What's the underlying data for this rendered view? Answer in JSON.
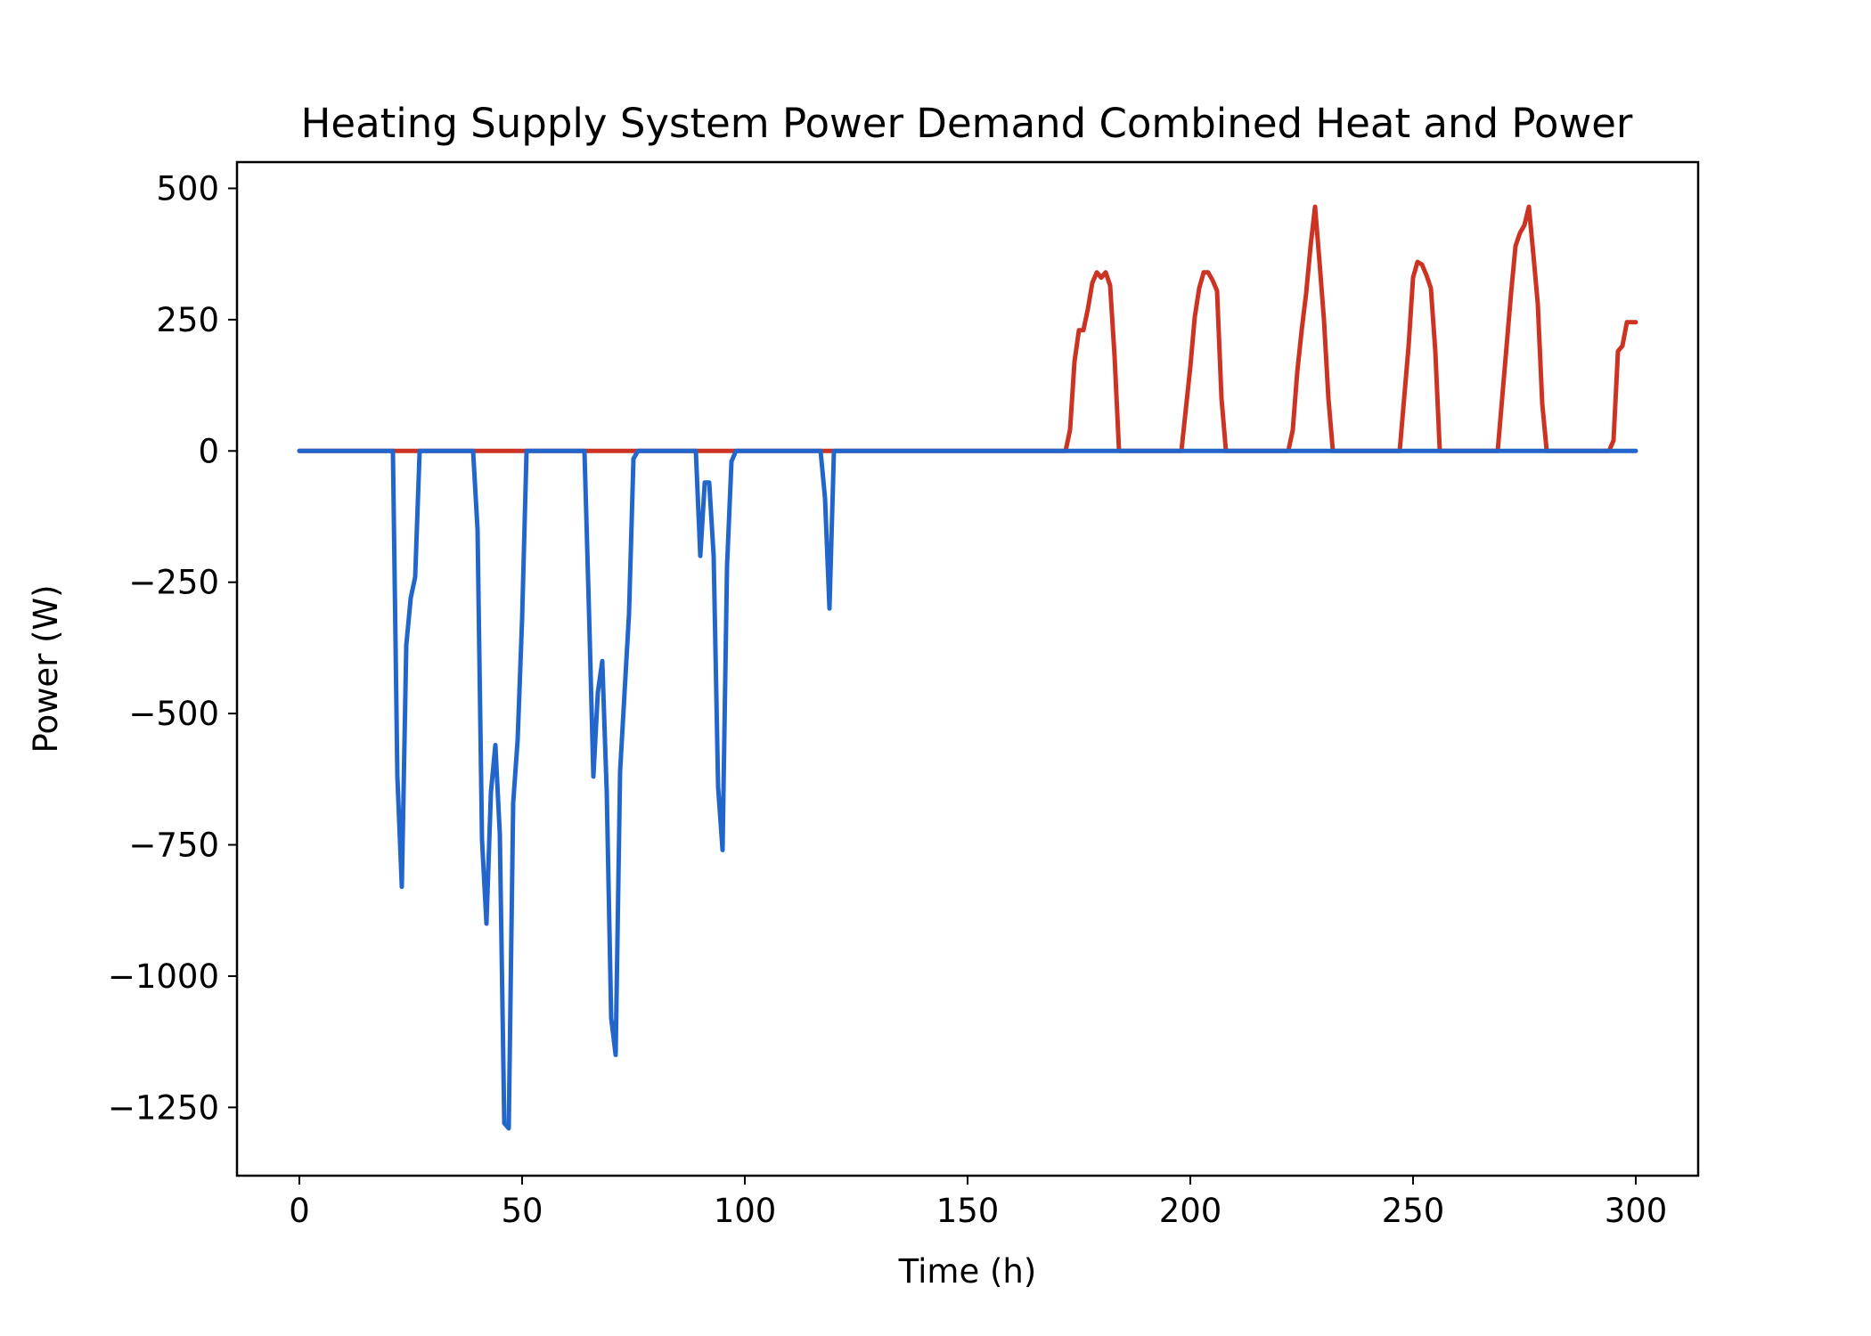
{
  "chart_data": {
    "type": "line",
    "title": "Heating Supply System Power Demand Combined Heat and Power",
    "xlabel": "Time (h)",
    "ylabel": "Power (W)",
    "xlim": [
      -14,
      314
    ],
    "ylim": [
      -1380,
      550
    ],
    "xticks": [
      0,
      50,
      100,
      150,
      200,
      250,
      300
    ],
    "xtick_labels": [
      "0",
      "50",
      "100",
      "150",
      "200",
      "250",
      "300"
    ],
    "yticks": [
      500,
      250,
      0,
      -250,
      -500,
      -750,
      -1000,
      -1250
    ],
    "ytick_labels": [
      "500",
      "250",
      "0",
      "−250",
      "−500",
      "−750",
      "−1000",
      "−1250"
    ],
    "grid": false,
    "legend": "none",
    "series": [
      {
        "color": "#cc3322",
        "points": [
          [
            0,
            0
          ],
          [
            172,
            0
          ],
          [
            173,
            40
          ],
          [
            174,
            170
          ],
          [
            175,
            230
          ],
          [
            176,
            230
          ],
          [
            177,
            270
          ],
          [
            178,
            320
          ],
          [
            179,
            340
          ],
          [
            180,
            330
          ],
          [
            181,
            340
          ],
          [
            182,
            315
          ],
          [
            183,
            180
          ],
          [
            184,
            0
          ],
          [
            197,
            0
          ],
          [
            198,
            0
          ],
          [
            199,
            80
          ],
          [
            200,
            160
          ],
          [
            201,
            255
          ],
          [
            202,
            310
          ],
          [
            203,
            340
          ],
          [
            204,
            340
          ],
          [
            205,
            325
          ],
          [
            206,
            305
          ],
          [
            207,
            100
          ],
          [
            208,
            0
          ],
          [
            222,
            0
          ],
          [
            223,
            40
          ],
          [
            224,
            150
          ],
          [
            225,
            230
          ],
          [
            226,
            300
          ],
          [
            227,
            390
          ],
          [
            228,
            465
          ],
          [
            229,
            360
          ],
          [
            230,
            250
          ],
          [
            231,
            100
          ],
          [
            232,
            0
          ],
          [
            246,
            0
          ],
          [
            247,
            0
          ],
          [
            248,
            100
          ],
          [
            249,
            200
          ],
          [
            250,
            330
          ],
          [
            251,
            360
          ],
          [
            252,
            355
          ],
          [
            253,
            335
          ],
          [
            254,
            310
          ],
          [
            255,
            190
          ],
          [
            256,
            0
          ],
          [
            269,
            0
          ],
          [
            270,
            100
          ],
          [
            271,
            200
          ],
          [
            272,
            300
          ],
          [
            273,
            390
          ],
          [
            274,
            415
          ],
          [
            275,
            430
          ],
          [
            276,
            465
          ],
          [
            277,
            375
          ],
          [
            278,
            280
          ],
          [
            279,
            90
          ],
          [
            280,
            0
          ],
          [
            294,
            0
          ],
          [
            295,
            20
          ],
          [
            296,
            190
          ],
          [
            297,
            200
          ],
          [
            298,
            245
          ],
          [
            299,
            245
          ],
          [
            300,
            245
          ]
        ]
      },
      {
        "color": "#2266cc",
        "points": [
          [
            0,
            0
          ],
          [
            21,
            0
          ],
          [
            22,
            -620
          ],
          [
            23,
            -830
          ],
          [
            24,
            -370
          ],
          [
            25,
            -280
          ],
          [
            26,
            -240
          ],
          [
            27,
            0
          ],
          [
            39,
            0
          ],
          [
            40,
            -150
          ],
          [
            41,
            -740
          ],
          [
            42,
            -900
          ],
          [
            43,
            -650
          ],
          [
            44,
            -560
          ],
          [
            45,
            -730
          ],
          [
            46,
            -1280
          ],
          [
            47,
            -1290
          ],
          [
            48,
            -670
          ],
          [
            49,
            -550
          ],
          [
            50,
            -320
          ],
          [
            51,
            0
          ],
          [
            64,
            0
          ],
          [
            65,
            -300
          ],
          [
            66,
            -620
          ],
          [
            67,
            -460
          ],
          [
            68,
            -400
          ],
          [
            69,
            -650
          ],
          [
            70,
            -1080
          ],
          [
            71,
            -1150
          ],
          [
            72,
            -610
          ],
          [
            73,
            -460
          ],
          [
            74,
            -310
          ],
          [
            75,
            -15
          ],
          [
            76,
            0
          ],
          [
            89,
            0
          ],
          [
            90,
            -200
          ],
          [
            91,
            -60
          ],
          [
            92,
            -60
          ],
          [
            93,
            -200
          ],
          [
            94,
            -640
          ],
          [
            95,
            -760
          ],
          [
            96,
            -220
          ],
          [
            97,
            -20
          ],
          [
            98,
            0
          ],
          [
            117,
            0
          ],
          [
            118,
            -90
          ],
          [
            119,
            -300
          ],
          [
            120,
            0
          ],
          [
            300,
            0
          ]
        ]
      }
    ]
  }
}
